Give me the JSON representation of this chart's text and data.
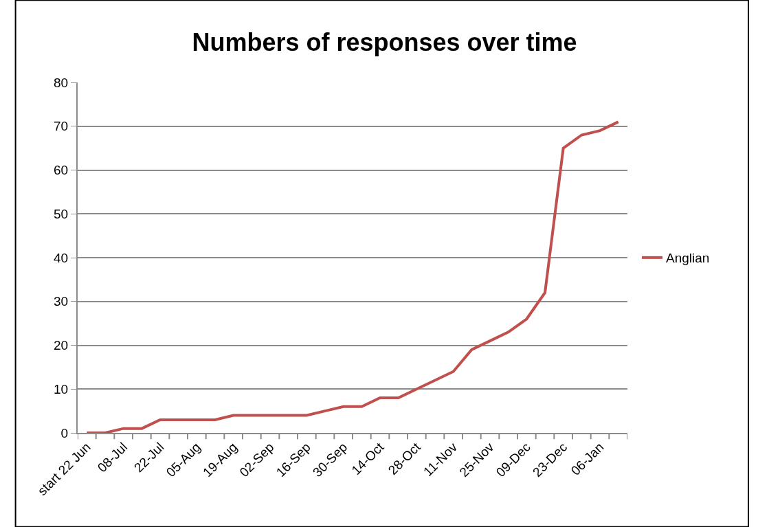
{
  "chart_data": {
    "type": "line",
    "title": "Numbers of responses over time",
    "categories": [
      "start 22 Jun",
      null,
      "08-Jul",
      null,
      "22-Jul",
      null,
      "05-Aug",
      null,
      "19-Aug",
      null,
      "02-Sep",
      null,
      "16-Sep",
      null,
      "30-Sep",
      null,
      "14-Oct",
      null,
      "28-Oct",
      null,
      "11-Nov",
      null,
      "25-Nov",
      null,
      "09-Dec",
      null,
      "23-Dec",
      null,
      "06-Jan",
      null
    ],
    "series": [
      {
        "name": "Anglian",
        "color": "#c0504d",
        "values": [
          0,
          0,
          1,
          1,
          3,
          3,
          3,
          3,
          4,
          4,
          4,
          4,
          4,
          5,
          6,
          6,
          8,
          8,
          10,
          12,
          14,
          19,
          21,
          23,
          26,
          32,
          65,
          68,
          69,
          71
        ]
      }
    ],
    "ylim": [
      0,
      80
    ],
    "yticks": [
      0,
      10,
      20,
      30,
      40,
      50,
      60,
      70,
      80
    ],
    "grid": "y",
    "legend": "right",
    "marker": "none",
    "line_style": "solid"
  }
}
